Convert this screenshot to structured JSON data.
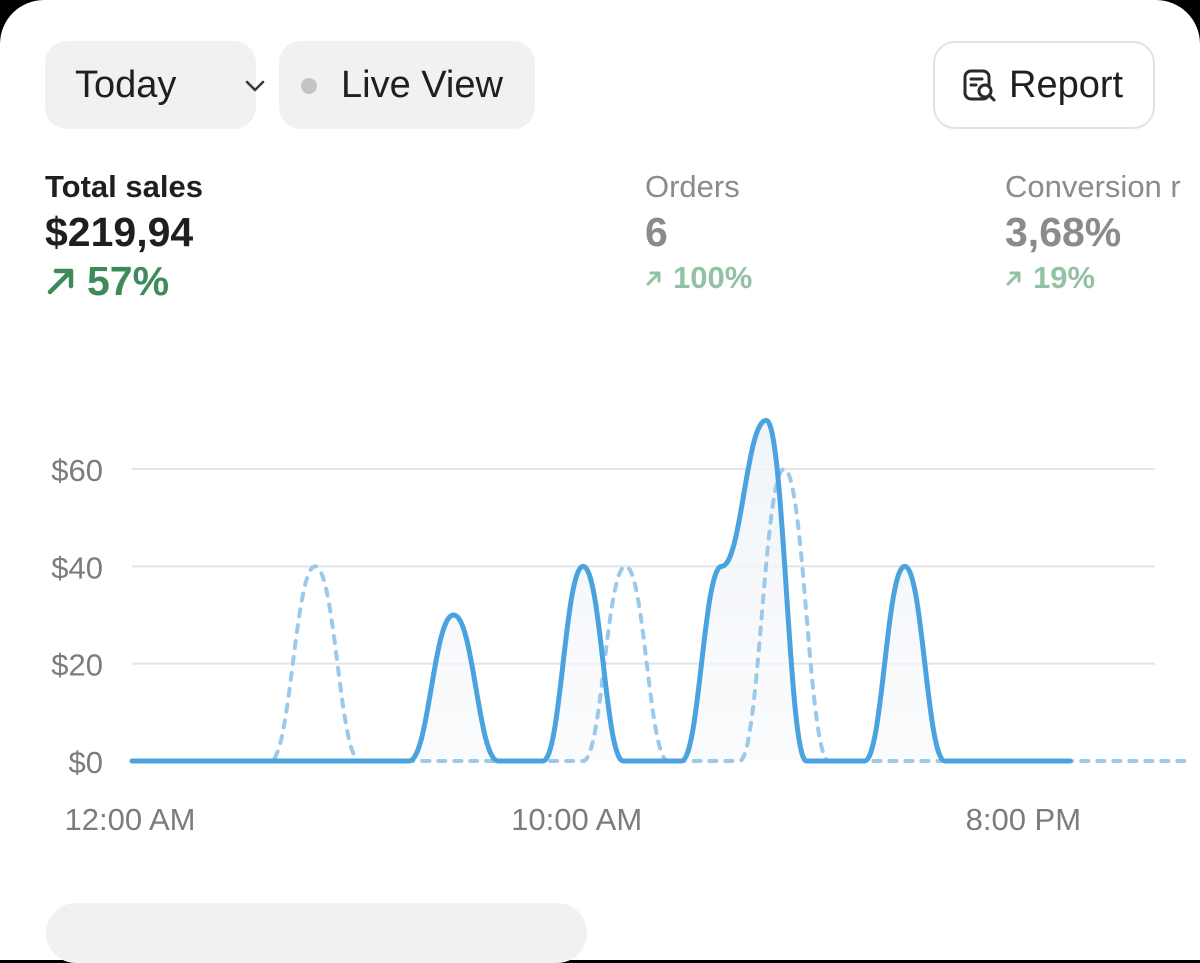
{
  "toolbar": {
    "date_label": "Today",
    "live_label": "Live View",
    "report_label": "Report"
  },
  "metrics": {
    "sales": {
      "label": "Total sales",
      "value": "$219,94",
      "change": "57%"
    },
    "orders": {
      "label": "Orders",
      "value": "6",
      "change": "100%"
    },
    "conversion": {
      "label": "Conversion r",
      "value": "3,68%",
      "change": "19%"
    }
  },
  "colors": {
    "accent": "#4aa3df",
    "positive": "#3d8a5a",
    "positive_muted": "#93c1a3",
    "muted_text": "#8b8b8b"
  },
  "chart_data": {
    "type": "line",
    "x_ticks": [
      "12:00 AM",
      "10:00 AM",
      "8:00 PM"
    ],
    "y_ticks": [
      "$0",
      "$20",
      "$40",
      "$60"
    ],
    "ylim": [
      0,
      70
    ],
    "xlim": [
      0,
      24
    ],
    "grid": true,
    "series": [
      {
        "style": "solid",
        "points": [
          [
            0,
            0
          ],
          [
            6.2,
            0
          ],
          [
            7.2,
            30
          ],
          [
            8.2,
            0
          ],
          [
            9.2,
            0
          ],
          [
            10.1,
            40
          ],
          [
            11,
            0
          ],
          [
            12.3,
            0
          ],
          [
            13.2,
            40
          ],
          [
            14.2,
            70
          ],
          [
            15.1,
            0
          ],
          [
            16.4,
            0
          ],
          [
            17.3,
            40
          ],
          [
            18.2,
            0
          ],
          [
            21,
            0
          ]
        ]
      },
      {
        "style": "dotted",
        "points": [
          [
            0,
            0
          ],
          [
            3.1,
            0
          ],
          [
            4.1,
            40
          ],
          [
            5.1,
            0
          ],
          [
            10.1,
            0
          ],
          [
            11.05,
            40
          ],
          [
            12,
            0
          ],
          [
            13.6,
            0
          ],
          [
            14.6,
            60
          ],
          [
            15.6,
            0
          ],
          [
            23.6,
            0
          ]
        ]
      }
    ]
  }
}
